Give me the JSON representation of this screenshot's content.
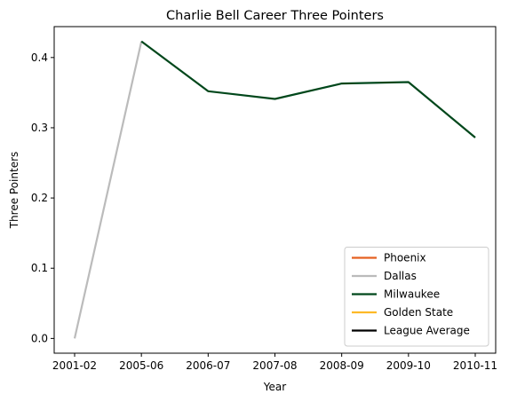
{
  "chart_data": {
    "type": "line",
    "title": "Charlie Bell  Career Three Pointers",
    "xlabel": "Year",
    "ylabel": "Three Pointers",
    "categories": [
      "2001-02",
      "2005-06",
      "2006-07",
      "2007-08",
      "2008-09",
      "2009-10",
      "2010-11"
    ],
    "ylim": [
      -0.021,
      0.444
    ],
    "yticks": [
      "0.0",
      "0.1",
      "0.2",
      "0.3",
      "0.4"
    ],
    "grid": false,
    "legend_position": "bottom-right",
    "series": [
      {
        "name": "Phoenix",
        "color": "#e56020",
        "segments": []
      },
      {
        "name": "Dallas",
        "color": "#bbbbbb",
        "segments": [
          {
            "x": [
              "2001-02",
              "2005-06"
            ],
            "y": [
              0.0,
              0.423
            ]
          }
        ]
      },
      {
        "name": "Milwaukee",
        "color": "#00471b",
        "segments": [
          {
            "x": [
              "2005-06",
              "2006-07",
              "2007-08",
              "2008-09",
              "2009-10",
              "2010-11"
            ],
            "y": [
              0.423,
              0.352,
              0.341,
              0.363,
              0.365,
              0.286
            ]
          }
        ]
      },
      {
        "name": "Golden State",
        "color": "#fdb927",
        "segments": []
      },
      {
        "name": "League Average",
        "color": "#000000",
        "segments": []
      }
    ]
  }
}
